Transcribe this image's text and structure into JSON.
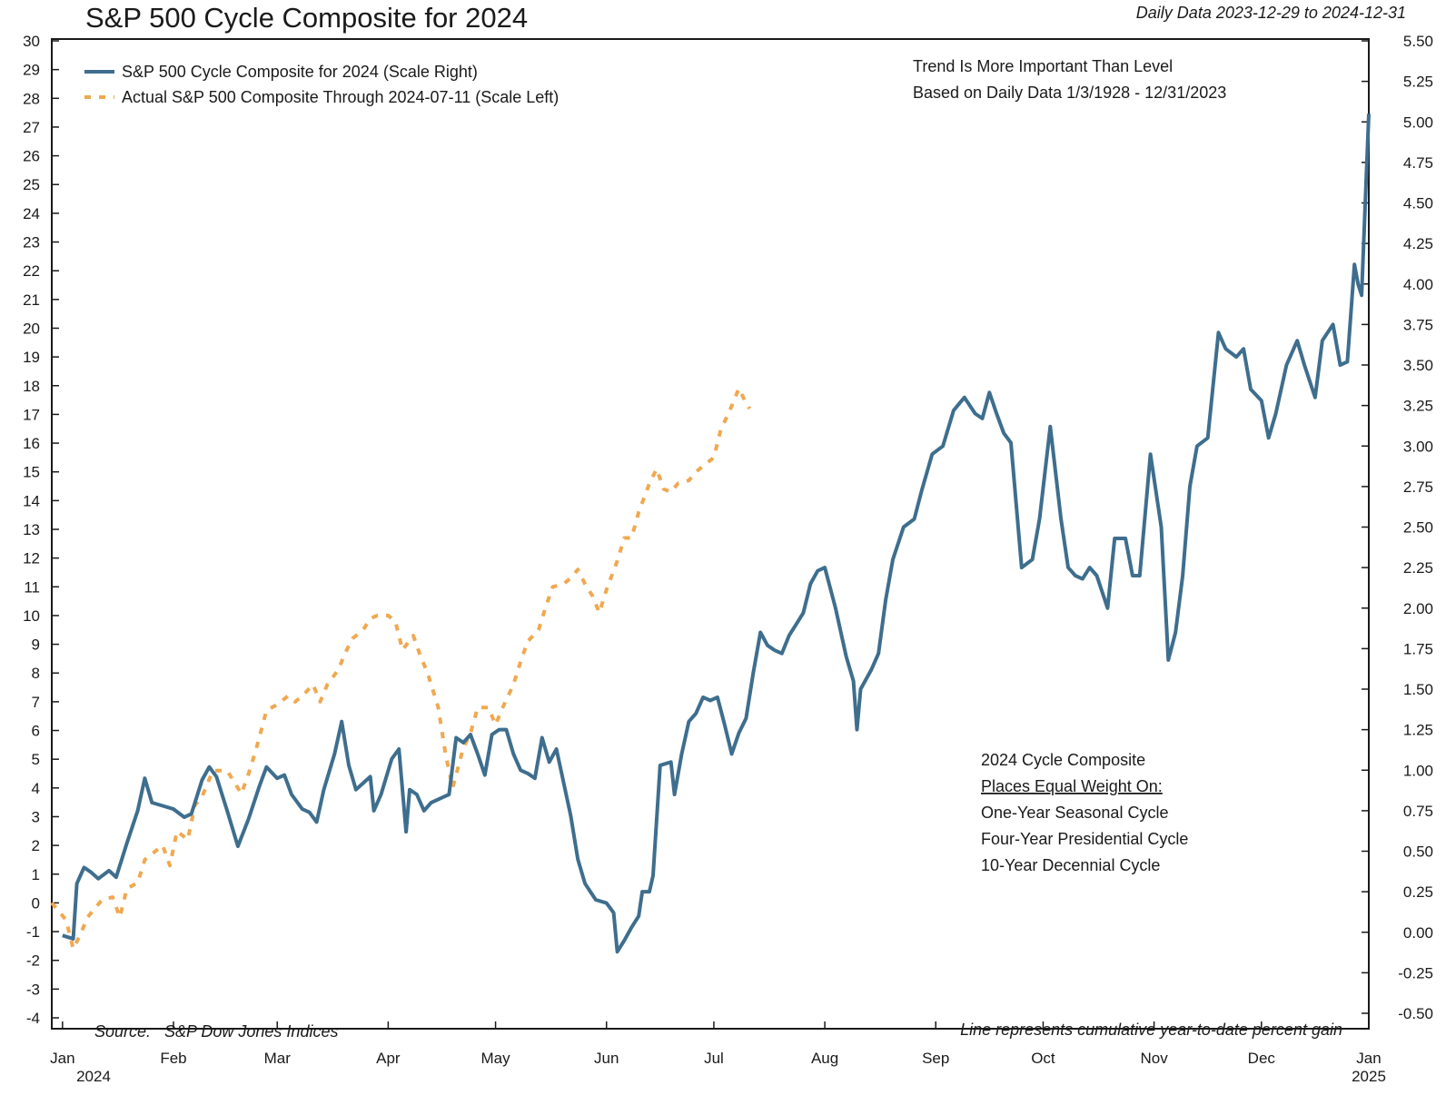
{
  "chart_data": {
    "type": "line",
    "title": "S&P 500 Cycle Composite for 2024",
    "subtitle": "Daily Data 2023-12-29 to 2024-12-31",
    "x_ticks": [
      "Jan",
      "Feb",
      "Mar",
      "Apr",
      "May",
      "Jun",
      "Jul",
      "Aug",
      "Sep",
      "Oct",
      "Nov",
      "Dec",
      "Jan"
    ],
    "x_year_labels": {
      "start": "2024",
      "end": "2025"
    },
    "xlim": [
      "2023-12-29",
      "2024-12-31"
    ],
    "y_left": {
      "ylim": [
        -4,
        30
      ],
      "ticks": [
        "-4",
        "-3",
        "-2",
        "-1",
        "0",
        "1",
        "2",
        "3",
        "4",
        "5",
        "6",
        "7",
        "8",
        "9",
        "10",
        "11",
        "12",
        "13",
        "14",
        "15",
        "16",
        "17",
        "18",
        "19",
        "20",
        "21",
        "22",
        "23",
        "24",
        "25",
        "26",
        "27",
        "28",
        "29",
        "30"
      ]
    },
    "y_right": {
      "ylim": [
        -0.5,
        5.5
      ],
      "ticks": [
        "-0.50",
        "-0.25",
        "0.00",
        "0.25",
        "0.50",
        "0.75",
        "1.00",
        "1.25",
        "1.50",
        "1.75",
        "2.00",
        "2.25",
        "2.50",
        "2.75",
        "3.00",
        "3.25",
        "3.50",
        "3.75",
        "4.00",
        "4.25",
        "4.50",
        "4.75",
        "5.00",
        "5.25",
        "5.50"
      ]
    },
    "legend": {
      "placement": "top-left",
      "entries": [
        "S&P 500 Cycle Composite for 2024 (Scale Right)",
        "Actual S&P 500 Composite Through 2024-07-11 (Scale Left)"
      ]
    },
    "annotations": {
      "trend_line1": "Trend Is More Important Than Level",
      "trend_line2": "Based on Daily Data 1/3/1928 - 12/31/2023",
      "box_title": "2024 Cycle Composite",
      "box_underlined": "Places Equal Weight On:",
      "box_item1": "One-Year Seasonal Cycle",
      "box_item2": "Four-Year Presidential Cycle",
      "box_item3": "10-Year Decennial Cycle",
      "source": "Source:   S&P Dow Jones Indices",
      "footnote": "Line represents cumulative year-to-date percent gain"
    },
    "colors": {
      "composite": "#3e6e8e",
      "actual": "#f0a850",
      "axis": "#1a1a1a"
    },
    "series": [
      {
        "name": "S&P 500 Cycle Composite for 2024 (Scale Right)",
        "axis": "right",
        "style": "solid",
        "points": [
          [
            "2024-01-01",
            -0.02
          ],
          [
            "2024-01-04",
            -0.04
          ],
          [
            "2024-01-05",
            0.3
          ],
          [
            "2024-01-07",
            0.4
          ],
          [
            "2024-01-09",
            0.37
          ],
          [
            "2024-01-11",
            0.33
          ],
          [
            "2024-01-14",
            0.38
          ],
          [
            "2024-01-16",
            0.34
          ],
          [
            "2024-01-19",
            0.55
          ],
          [
            "2024-01-22",
            0.75
          ],
          [
            "2024-01-24",
            0.95
          ],
          [
            "2024-01-26",
            0.8
          ],
          [
            "2024-01-29",
            0.78
          ],
          [
            "2024-02-01",
            0.76
          ],
          [
            "2024-02-04",
            0.71
          ],
          [
            "2024-02-06",
            0.73
          ],
          [
            "2024-02-09",
            0.94
          ],
          [
            "2024-02-11",
            1.02
          ],
          [
            "2024-02-13",
            0.96
          ],
          [
            "2024-02-16",
            0.75
          ],
          [
            "2024-02-19",
            0.53
          ],
          [
            "2024-02-22",
            0.7
          ],
          [
            "2024-02-25",
            0.9
          ],
          [
            "2024-02-27",
            1.02
          ],
          [
            "2024-03-01",
            0.95
          ],
          [
            "2024-03-03",
            0.97
          ],
          [
            "2024-03-05",
            0.85
          ],
          [
            "2024-03-08",
            0.76
          ],
          [
            "2024-03-10",
            0.74
          ],
          [
            "2024-03-12",
            0.68
          ],
          [
            "2024-03-14",
            0.88
          ],
          [
            "2024-03-17",
            1.1
          ],
          [
            "2024-03-19",
            1.3
          ],
          [
            "2024-03-21",
            1.03
          ],
          [
            "2024-03-23",
            0.88
          ],
          [
            "2024-03-25",
            0.92
          ],
          [
            "2024-03-27",
            0.96
          ],
          [
            "2024-03-28",
            0.75
          ],
          [
            "2024-03-30",
            0.85
          ],
          [
            "2024-04-02",
            1.07
          ],
          [
            "2024-04-04",
            1.13
          ],
          [
            "2024-04-06",
            0.62
          ],
          [
            "2024-04-07",
            0.88
          ],
          [
            "2024-04-09",
            0.85
          ],
          [
            "2024-04-11",
            0.75
          ],
          [
            "2024-04-13",
            0.8
          ],
          [
            "2024-04-16",
            0.83
          ],
          [
            "2024-04-18",
            0.85
          ],
          [
            "2024-04-20",
            1.2
          ],
          [
            "2024-04-22",
            1.17
          ],
          [
            "2024-04-24",
            1.22
          ],
          [
            "2024-04-26",
            1.1
          ],
          [
            "2024-04-28",
            0.97
          ],
          [
            "2024-04-30",
            1.22
          ],
          [
            "2024-05-02",
            1.25
          ],
          [
            "2024-05-04",
            1.25
          ],
          [
            "2024-05-06",
            1.1
          ],
          [
            "2024-05-08",
            1.0
          ],
          [
            "2024-05-10",
            0.98
          ],
          [
            "2024-05-12",
            0.95
          ],
          [
            "2024-05-14",
            1.2
          ],
          [
            "2024-05-16",
            1.05
          ],
          [
            "2024-05-18",
            1.13
          ],
          [
            "2024-05-22",
            0.72
          ],
          [
            "2024-05-24",
            0.45
          ],
          [
            "2024-05-26",
            0.3
          ],
          [
            "2024-05-29",
            0.2
          ],
          [
            "2024-06-01",
            0.18
          ],
          [
            "2024-06-03",
            0.12
          ],
          [
            "2024-06-04",
            -0.12
          ],
          [
            "2024-06-06",
            -0.05
          ],
          [
            "2024-06-08",
            0.03
          ],
          [
            "2024-06-10",
            0.1
          ],
          [
            "2024-06-11",
            0.25
          ],
          [
            "2024-06-13",
            0.25
          ],
          [
            "2024-06-14",
            0.35
          ],
          [
            "2024-06-16",
            1.03
          ],
          [
            "2024-06-19",
            1.05
          ],
          [
            "2024-06-20",
            0.85
          ],
          [
            "2024-06-22",
            1.1
          ],
          [
            "2024-06-24",
            1.3
          ],
          [
            "2024-06-26",
            1.35
          ],
          [
            "2024-06-28",
            1.45
          ],
          [
            "2024-06-30",
            1.43
          ],
          [
            "2024-07-02",
            1.45
          ],
          [
            "2024-07-04",
            1.28
          ],
          [
            "2024-07-06",
            1.1
          ],
          [
            "2024-07-08",
            1.23
          ],
          [
            "2024-07-10",
            1.32
          ],
          [
            "2024-07-12",
            1.6
          ],
          [
            "2024-07-14",
            1.85
          ],
          [
            "2024-07-16",
            1.77
          ],
          [
            "2024-07-18",
            1.74
          ],
          [
            "2024-07-20",
            1.72
          ],
          [
            "2024-07-22",
            1.83
          ],
          [
            "2024-07-24",
            1.9
          ],
          [
            "2024-07-26",
            1.97
          ],
          [
            "2024-07-28",
            2.15
          ],
          [
            "2024-07-30",
            2.23
          ],
          [
            "2024-08-01",
            2.25
          ],
          [
            "2024-08-04",
            2.0
          ],
          [
            "2024-08-07",
            1.7
          ],
          [
            "2024-08-09",
            1.55
          ],
          [
            "2024-08-10",
            1.25
          ],
          [
            "2024-08-11",
            1.5
          ],
          [
            "2024-08-14",
            1.62
          ],
          [
            "2024-08-16",
            1.72
          ],
          [
            "2024-08-18",
            2.05
          ],
          [
            "2024-08-20",
            2.3
          ],
          [
            "2024-08-23",
            2.5
          ],
          [
            "2024-08-26",
            2.55
          ],
          [
            "2024-08-28",
            2.72
          ],
          [
            "2024-08-31",
            2.95
          ],
          [
            "2024-09-03",
            3.0
          ],
          [
            "2024-09-06",
            3.22
          ],
          [
            "2024-09-09",
            3.3
          ],
          [
            "2024-09-12",
            3.2
          ],
          [
            "2024-09-14",
            3.17
          ],
          [
            "2024-09-16",
            3.33
          ],
          [
            "2024-09-18",
            3.2
          ],
          [
            "2024-09-20",
            3.08
          ],
          [
            "2024-09-22",
            3.02
          ],
          [
            "2024-09-25",
            2.25
          ],
          [
            "2024-09-28",
            2.3
          ],
          [
            "2024-09-30",
            2.55
          ],
          [
            "2024-10-03",
            3.12
          ],
          [
            "2024-10-06",
            2.55
          ],
          [
            "2024-10-08",
            2.25
          ],
          [
            "2024-10-10",
            2.2
          ],
          [
            "2024-10-12",
            2.18
          ],
          [
            "2024-10-14",
            2.25
          ],
          [
            "2024-10-16",
            2.2
          ],
          [
            "2024-10-19",
            2.0
          ],
          [
            "2024-10-21",
            2.43
          ],
          [
            "2024-10-24",
            2.43
          ],
          [
            "2024-10-26",
            2.2
          ],
          [
            "2024-10-28",
            2.2
          ],
          [
            "2024-10-31",
            2.95
          ],
          [
            "2024-11-03",
            2.5
          ],
          [
            "2024-11-05",
            1.68
          ],
          [
            "2024-11-07",
            1.85
          ],
          [
            "2024-11-09",
            2.2
          ],
          [
            "2024-11-11",
            2.75
          ],
          [
            "2024-11-13",
            3.0
          ],
          [
            "2024-11-16",
            3.05
          ],
          [
            "2024-11-19",
            3.7
          ],
          [
            "2024-11-21",
            3.6
          ],
          [
            "2024-11-24",
            3.55
          ],
          [
            "2024-11-26",
            3.6
          ],
          [
            "2024-11-28",
            3.35
          ],
          [
            "2024-12-01",
            3.28
          ],
          [
            "2024-12-03",
            3.05
          ],
          [
            "2024-12-05",
            3.2
          ],
          [
            "2024-12-08",
            3.5
          ],
          [
            "2024-12-11",
            3.65
          ],
          [
            "2024-12-13",
            3.5
          ],
          [
            "2024-12-16",
            3.3
          ],
          [
            "2024-12-18",
            3.65
          ],
          [
            "2024-12-21",
            3.75
          ],
          [
            "2024-12-23",
            3.5
          ],
          [
            "2024-12-25",
            3.52
          ],
          [
            "2024-12-27",
            4.12
          ],
          [
            "2024-12-28",
            4.0
          ],
          [
            "2024-12-29",
            3.93
          ],
          [
            "2024-12-30",
            4.5
          ],
          [
            "2024-12-31",
            5.05
          ]
        ]
      },
      {
        "name": "Actual S&P 500 Composite Through 2024-07-11 (Scale Left)",
        "axis": "left",
        "style": "dashed",
        "points": [
          [
            "2023-12-29",
            0.0
          ],
          [
            "2024-01-02",
            -0.6
          ],
          [
            "2024-01-04",
            -1.6
          ],
          [
            "2024-01-06",
            -1.1
          ],
          [
            "2024-01-08",
            -0.5
          ],
          [
            "2024-01-10",
            -0.2
          ],
          [
            "2024-01-12",
            0.1
          ],
          [
            "2024-01-15",
            0.2
          ],
          [
            "2024-01-17",
            -0.5
          ],
          [
            "2024-01-19",
            0.5
          ],
          [
            "2024-01-22",
            0.7
          ],
          [
            "2024-01-24",
            1.5
          ],
          [
            "2024-01-26",
            1.7
          ],
          [
            "2024-01-29",
            2.0
          ],
          [
            "2024-01-31",
            1.3
          ],
          [
            "2024-02-02",
            2.5
          ],
          [
            "2024-02-05",
            2.2
          ],
          [
            "2024-02-07",
            3.4
          ],
          [
            "2024-02-09",
            3.7
          ],
          [
            "2024-02-12",
            4.6
          ],
          [
            "2024-02-14",
            4.6
          ],
          [
            "2024-02-16",
            4.6
          ],
          [
            "2024-02-20",
            3.8
          ],
          [
            "2024-02-22",
            4.5
          ],
          [
            "2024-02-24",
            5.3
          ],
          [
            "2024-02-27",
            6.7
          ],
          [
            "2024-03-01",
            6.9
          ],
          [
            "2024-03-04",
            7.2
          ],
          [
            "2024-03-06",
            7.0
          ],
          [
            "2024-03-08",
            7.2
          ],
          [
            "2024-03-11",
            7.6
          ],
          [
            "2024-03-13",
            7.0
          ],
          [
            "2024-03-15",
            7.6
          ],
          [
            "2024-03-18",
            8.1
          ],
          [
            "2024-03-20",
            8.7
          ],
          [
            "2024-03-22",
            9.2
          ],
          [
            "2024-03-25",
            9.5
          ],
          [
            "2024-03-27",
            9.9
          ],
          [
            "2024-03-29",
            10.0
          ],
          [
            "2024-04-01",
            10.0
          ],
          [
            "2024-04-03",
            9.8
          ],
          [
            "2024-04-05",
            8.8
          ],
          [
            "2024-04-08",
            9.3
          ],
          [
            "2024-04-10",
            8.6
          ],
          [
            "2024-04-12",
            8.0
          ],
          [
            "2024-04-15",
            6.8
          ],
          [
            "2024-04-17",
            5.2
          ],
          [
            "2024-04-19",
            4.0
          ],
          [
            "2024-04-22",
            5.4
          ],
          [
            "2024-04-24",
            5.9
          ],
          [
            "2024-04-26",
            6.8
          ],
          [
            "2024-04-29",
            6.8
          ],
          [
            "2024-05-01",
            6.2
          ],
          [
            "2024-05-03",
            6.8
          ],
          [
            "2024-05-06",
            7.6
          ],
          [
            "2024-05-08",
            8.4
          ],
          [
            "2024-05-10",
            9.1
          ],
          [
            "2024-05-13",
            9.5
          ],
          [
            "2024-05-15",
            10.3
          ],
          [
            "2024-05-17",
            11.0
          ],
          [
            "2024-05-20",
            11.1
          ],
          [
            "2024-05-22",
            11.3
          ],
          [
            "2024-05-24",
            11.6
          ],
          [
            "2024-05-26",
            11.1
          ],
          [
            "2024-05-28",
            10.7
          ],
          [
            "2024-05-30",
            10.1
          ],
          [
            "2024-06-01",
            10.9
          ],
          [
            "2024-06-04",
            11.9
          ],
          [
            "2024-06-06",
            12.7
          ],
          [
            "2024-06-08",
            12.7
          ],
          [
            "2024-06-10",
            13.6
          ],
          [
            "2024-06-13",
            14.6
          ],
          [
            "2024-06-15",
            15.1
          ],
          [
            "2024-06-17",
            14.4
          ],
          [
            "2024-06-19",
            14.3
          ],
          [
            "2024-06-21",
            14.6
          ],
          [
            "2024-06-24",
            14.7
          ],
          [
            "2024-06-26",
            15.0
          ],
          [
            "2024-06-28",
            15.2
          ],
          [
            "2024-07-01",
            15.5
          ],
          [
            "2024-07-03",
            16.5
          ],
          [
            "2024-07-05",
            17.0
          ],
          [
            "2024-07-08",
            17.9
          ],
          [
            "2024-07-10",
            17.4
          ],
          [
            "2024-07-11",
            17.2
          ]
        ]
      }
    ]
  }
}
